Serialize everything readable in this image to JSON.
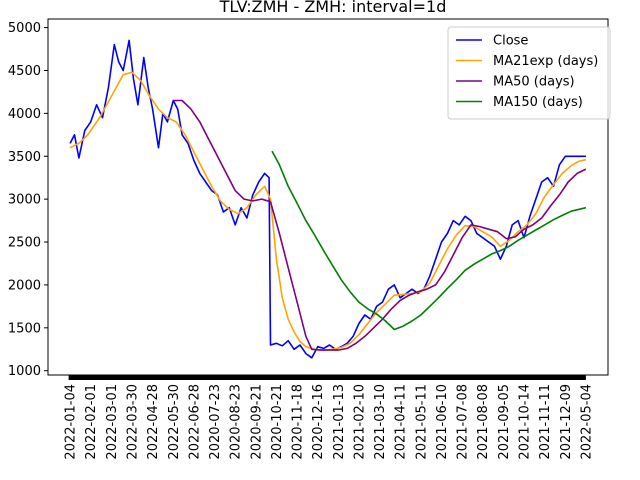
{
  "chart_data": {
    "type": "line",
    "title": "TLV:ZMH - ZMH: interval=1d",
    "xlabel": "",
    "ylabel": "",
    "ylim": [
      950,
      5100
    ],
    "yticks": [
      1000,
      1500,
      2000,
      2500,
      3000,
      3500,
      4000,
      4500,
      5000
    ],
    "x_tick_labels": [
      "2022-01-04",
      "2022-02-01",
      "2022-03-01",
      "2022-03-30",
      "2022-04-28",
      "2022-05-30",
      "2022-06-28",
      "2020-07-23",
      "2020-08-23",
      "2020-09-21",
      "2020-10-21",
      "2020-11-18",
      "2020-12-16",
      "2021-01-13",
      "2021-02-10",
      "2021-03-10",
      "2021-04-11",
      "2021-05-11",
      "2021-06-10",
      "2021-07-08",
      "2021-08-08",
      "2021-09-05",
      "2021-10-14",
      "2021-11-11",
      "2021-12-09",
      "2022-05-04"
    ],
    "grid": false,
    "legend_position": "top-right",
    "series": [
      {
        "name": "Close",
        "color": "#0000ff",
        "points": [
          [
            0,
            3650
          ],
          [
            0.3,
            3750
          ],
          [
            0.6,
            3480
          ],
          [
            1,
            3800
          ],
          [
            1.4,
            3900
          ],
          [
            1.8,
            4100
          ],
          [
            2.2,
            3950
          ],
          [
            2.6,
            4300
          ],
          [
            3,
            4800
          ],
          [
            3.3,
            4600
          ],
          [
            3.6,
            4500
          ],
          [
            4,
            4850
          ],
          [
            4.3,
            4400
          ],
          [
            4.6,
            4100
          ],
          [
            5,
            4650
          ],
          [
            5.3,
            4300
          ],
          [
            5.6,
            4050
          ],
          [
            6,
            3600
          ],
          [
            6.3,
            4000
          ],
          [
            6.6,
            3900
          ],
          [
            7,
            4150
          ],
          [
            7.3,
            4050
          ],
          [
            7.6,
            3750
          ],
          [
            8,
            3650
          ],
          [
            8.4,
            3450
          ],
          [
            8.8,
            3300
          ],
          [
            9.2,
            3200
          ],
          [
            9.6,
            3100
          ],
          [
            10,
            3050
          ],
          [
            10.4,
            2850
          ],
          [
            10.8,
            2900
          ],
          [
            11.2,
            2700
          ],
          [
            11.6,
            2900
          ],
          [
            12,
            2780
          ],
          [
            12.4,
            3050
          ],
          [
            12.8,
            3200
          ],
          [
            13.2,
            3300
          ],
          [
            13.5,
            3250
          ],
          [
            13.6,
            1300
          ],
          [
            14,
            1320
          ],
          [
            14.4,
            1290
          ],
          [
            14.8,
            1350
          ],
          [
            15.2,
            1250
          ],
          [
            15.6,
            1300
          ],
          [
            16,
            1200
          ],
          [
            16.4,
            1150
          ],
          [
            16.8,
            1280
          ],
          [
            17.2,
            1260
          ],
          [
            17.6,
            1300
          ],
          [
            18,
            1250
          ],
          [
            18.4,
            1280
          ],
          [
            18.8,
            1320
          ],
          [
            19.2,
            1400
          ],
          [
            19.6,
            1550
          ],
          [
            20,
            1650
          ],
          [
            20.4,
            1600
          ],
          [
            20.8,
            1750
          ],
          [
            21.2,
            1800
          ],
          [
            21.6,
            1950
          ],
          [
            22,
            2000
          ],
          [
            22.4,
            1850
          ],
          [
            22.8,
            1900
          ],
          [
            23.2,
            1950
          ],
          [
            23.6,
            1900
          ],
          [
            24,
            1950
          ],
          [
            24.4,
            2100
          ],
          [
            24.8,
            2300
          ],
          [
            25.2,
            2500
          ],
          [
            25.6,
            2600
          ],
          [
            26,
            2750
          ],
          [
            26.4,
            2700
          ],
          [
            26.8,
            2800
          ],
          [
            27.2,
            2750
          ],
          [
            27.6,
            2600
          ],
          [
            28,
            2550
          ],
          [
            28.4,
            2500
          ],
          [
            28.8,
            2450
          ],
          [
            29.2,
            2300
          ],
          [
            29.6,
            2450
          ],
          [
            30,
            2700
          ],
          [
            30.4,
            2750
          ],
          [
            30.8,
            2550
          ],
          [
            31.2,
            2800
          ],
          [
            31.6,
            3000
          ],
          [
            32,
            3200
          ],
          [
            32.4,
            3250
          ],
          [
            32.8,
            3150
          ],
          [
            33.2,
            3400
          ],
          [
            33.6,
            3500
          ],
          [
            34,
            3500
          ],
          [
            34.5,
            3500
          ],
          [
            35,
            3500
          ]
        ]
      },
      {
        "name": "MA21exp (days)",
        "color": "#ffa500",
        "points": [
          [
            0,
            3600
          ],
          [
            0.6,
            3650
          ],
          [
            1.2,
            3750
          ],
          [
            2,
            3950
          ],
          [
            2.8,
            4200
          ],
          [
            3.6,
            4450
          ],
          [
            4.2,
            4480
          ],
          [
            4.8,
            4380
          ],
          [
            5.4,
            4200
          ],
          [
            6,
            4050
          ],
          [
            6.6,
            3950
          ],
          [
            7.2,
            3900
          ],
          [
            7.8,
            3750
          ],
          [
            8.4,
            3550
          ],
          [
            9,
            3350
          ],
          [
            9.6,
            3150
          ],
          [
            10.2,
            2980
          ],
          [
            10.8,
            2880
          ],
          [
            11.4,
            2830
          ],
          [
            12,
            2900
          ],
          [
            12.6,
            3050
          ],
          [
            13.2,
            3150
          ],
          [
            13.6,
            3000
          ],
          [
            14,
            2300
          ],
          [
            14.4,
            1850
          ],
          [
            14.8,
            1600
          ],
          [
            15.2,
            1450
          ],
          [
            15.6,
            1340
          ],
          [
            16,
            1280
          ],
          [
            16.6,
            1250
          ],
          [
            17.2,
            1240
          ],
          [
            17.8,
            1250
          ],
          [
            18.4,
            1270
          ],
          [
            19,
            1320
          ],
          [
            19.6,
            1420
          ],
          [
            20.2,
            1550
          ],
          [
            20.8,
            1680
          ],
          [
            21.4,
            1780
          ],
          [
            22,
            1880
          ],
          [
            22.6,
            1890
          ],
          [
            23.2,
            1900
          ],
          [
            23.8,
            1920
          ],
          [
            24.4,
            2020
          ],
          [
            25,
            2220
          ],
          [
            25.6,
            2420
          ],
          [
            26.2,
            2580
          ],
          [
            26.8,
            2690
          ],
          [
            27.4,
            2680
          ],
          [
            28,
            2620
          ],
          [
            28.6,
            2560
          ],
          [
            29.2,
            2450
          ],
          [
            29.8,
            2520
          ],
          [
            30.4,
            2620
          ],
          [
            31,
            2700
          ],
          [
            31.6,
            2830
          ],
          [
            32.2,
            3030
          ],
          [
            32.8,
            3170
          ],
          [
            33.4,
            3300
          ],
          [
            34,
            3390
          ],
          [
            34.5,
            3440
          ],
          [
            35,
            3460
          ]
        ]
      },
      {
        "name": "MA50 (days)",
        "color": "#800080",
        "points": [
          [
            7,
            4150
          ],
          [
            7.6,
            4150
          ],
          [
            8.2,
            4050
          ],
          [
            8.8,
            3900
          ],
          [
            9.4,
            3700
          ],
          [
            10,
            3500
          ],
          [
            10.6,
            3300
          ],
          [
            11.2,
            3100
          ],
          [
            11.8,
            3000
          ],
          [
            12.4,
            2980
          ],
          [
            13,
            3000
          ],
          [
            13.6,
            2970
          ],
          [
            14.2,
            2600
          ],
          [
            14.8,
            2200
          ],
          [
            15.4,
            1800
          ],
          [
            16,
            1400
          ],
          [
            16.4,
            1250
          ],
          [
            17,
            1240
          ],
          [
            17.6,
            1240
          ],
          [
            18.2,
            1240
          ],
          [
            18.8,
            1260
          ],
          [
            19.4,
            1320
          ],
          [
            20,
            1400
          ],
          [
            20.6,
            1500
          ],
          [
            21.2,
            1600
          ],
          [
            21.8,
            1720
          ],
          [
            22.4,
            1820
          ],
          [
            23,
            1880
          ],
          [
            23.6,
            1920
          ],
          [
            24.2,
            1950
          ],
          [
            24.8,
            2000
          ],
          [
            25.4,
            2150
          ],
          [
            26,
            2350
          ],
          [
            26.6,
            2550
          ],
          [
            27.2,
            2700
          ],
          [
            27.8,
            2680
          ],
          [
            28.4,
            2650
          ],
          [
            29,
            2620
          ],
          [
            29.6,
            2540
          ],
          [
            30.2,
            2560
          ],
          [
            30.8,
            2650
          ],
          [
            31.4,
            2700
          ],
          [
            32,
            2780
          ],
          [
            32.6,
            2920
          ],
          [
            33.2,
            3050
          ],
          [
            33.8,
            3200
          ],
          [
            34.4,
            3300
          ],
          [
            35,
            3350
          ]
        ]
      },
      {
        "name": "MA150 (days)",
        "color": "#008000",
        "points": [
          [
            13.7,
            3560
          ],
          [
            14.2,
            3400
          ],
          [
            14.8,
            3150
          ],
          [
            15.4,
            2950
          ],
          [
            16,
            2750
          ],
          [
            16.6,
            2580
          ],
          [
            17.2,
            2400
          ],
          [
            17.8,
            2230
          ],
          [
            18.4,
            2060
          ],
          [
            19,
            1920
          ],
          [
            19.6,
            1800
          ],
          [
            20.2,
            1720
          ],
          [
            20.8,
            1660
          ],
          [
            21.4,
            1580
          ],
          [
            22,
            1480
          ],
          [
            22.6,
            1520
          ],
          [
            23.2,
            1580
          ],
          [
            23.8,
            1650
          ],
          [
            24.4,
            1750
          ],
          [
            25,
            1850
          ],
          [
            25.6,
            1960
          ],
          [
            26.2,
            2060
          ],
          [
            26.8,
            2170
          ],
          [
            27.4,
            2240
          ],
          [
            28,
            2300
          ],
          [
            28.6,
            2360
          ],
          [
            29.2,
            2400
          ],
          [
            29.8,
            2450
          ],
          [
            30.4,
            2520
          ],
          [
            31,
            2580
          ],
          [
            31.6,
            2640
          ],
          [
            32.2,
            2700
          ],
          [
            32.8,
            2760
          ],
          [
            33.4,
            2810
          ],
          [
            34,
            2860
          ],
          [
            35,
            2900
          ]
        ]
      }
    ]
  }
}
